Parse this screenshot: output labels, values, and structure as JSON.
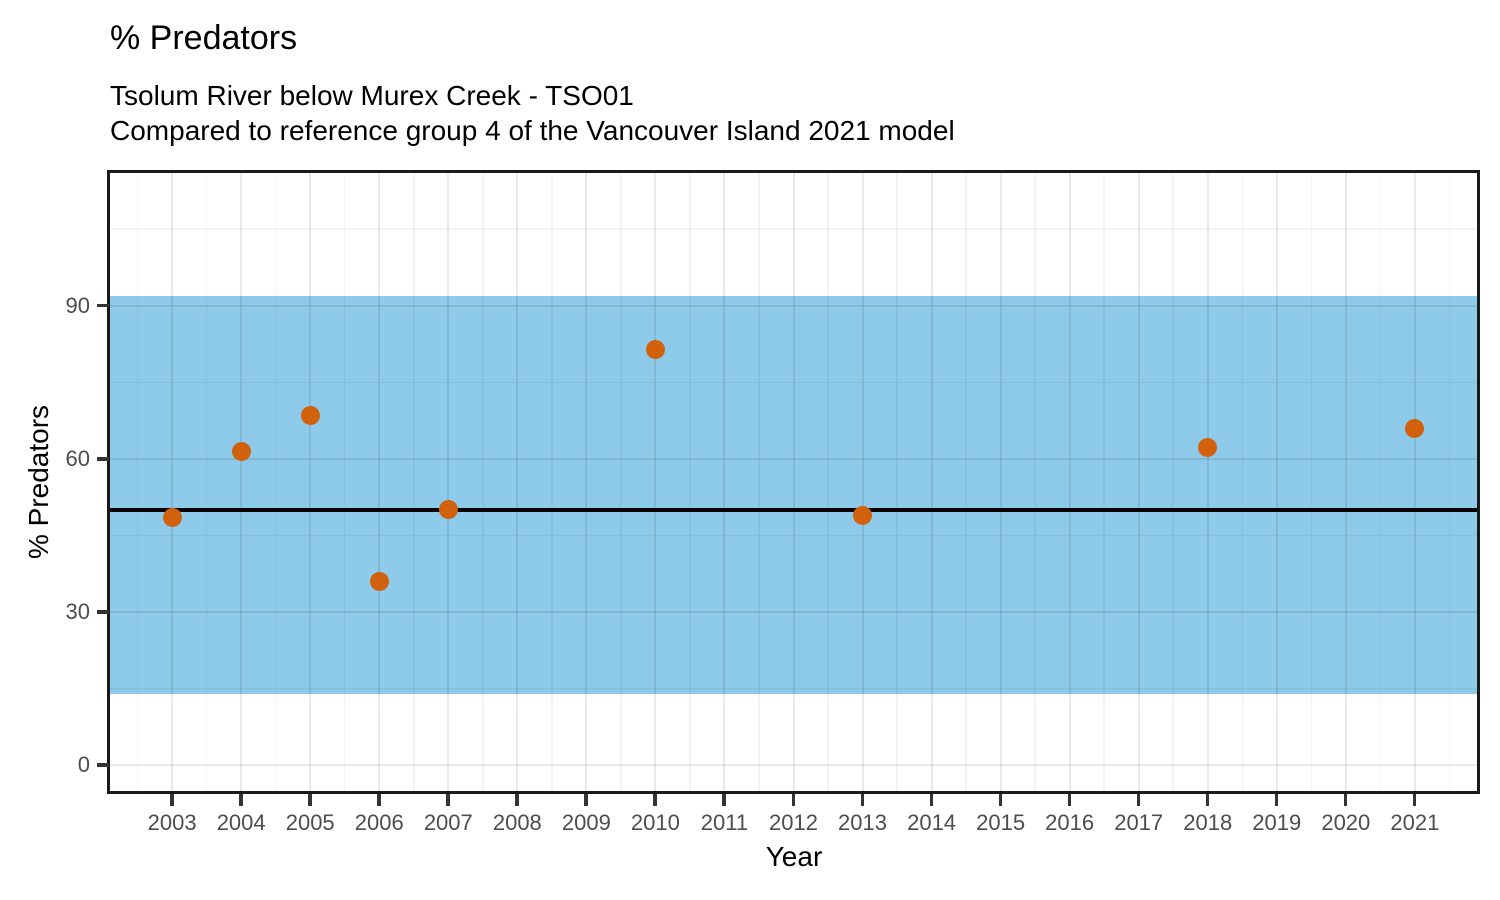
{
  "chart_data": {
    "type": "scatter",
    "title": "% Predators",
    "subtitle_line1": "Tsolum River below Murex Creek - TSO01",
    "subtitle_line2": "Compared to reference group 4 of the Vancouver Island 2021 model",
    "xlabel": "Year",
    "ylabel": "% Predators",
    "x_domain": [
      2002.1,
      2021.9
    ],
    "y_domain": [
      -5,
      116
    ],
    "x_ticks": [
      2003,
      2004,
      2005,
      2006,
      2007,
      2008,
      2009,
      2010,
      2011,
      2012,
      2013,
      2014,
      2015,
      2016,
      2017,
      2018,
      2019,
      2020,
      2021
    ],
    "x_minor_gridlines": [
      2002.5,
      2003.5,
      2004.5,
      2005.5,
      2006.5,
      2007.5,
      2008.5,
      2009.5,
      2010.5,
      2011.5,
      2012.5,
      2013.5,
      2014.5,
      2015.5,
      2016.5,
      2017.5,
      2018.5,
      2019.5,
      2020.5,
      2021.5
    ],
    "y_ticks": [
      0,
      30,
      60,
      90
    ],
    "y_minor_gridlines": [
      15,
      45,
      75,
      105
    ],
    "grid": true,
    "legend": "none",
    "reference_band": {
      "lower": 14,
      "upper": 92
    },
    "reference_line": {
      "value": 50
    },
    "series": [
      {
        "name": "% Predators",
        "points": [
          {
            "x": 2003,
            "y": 48.5
          },
          {
            "x": 2004,
            "y": 61.4
          },
          {
            "x": 2005,
            "y": 68.6
          },
          {
            "x": 2006,
            "y": 36.1
          },
          {
            "x": 2007,
            "y": 50.2
          },
          {
            "x": 2010,
            "y": 81.5
          },
          {
            "x": 2013,
            "y": 48.9
          },
          {
            "x": 2018,
            "y": 62.2
          },
          {
            "x": 2021,
            "y": 66.0
          }
        ]
      }
    ],
    "colors": {
      "band": "#8ECAE9",
      "point": "#D2610E",
      "reference_line": "#000000",
      "tick_label": "#4d4d4d",
      "axis_text": "#000000"
    }
  }
}
